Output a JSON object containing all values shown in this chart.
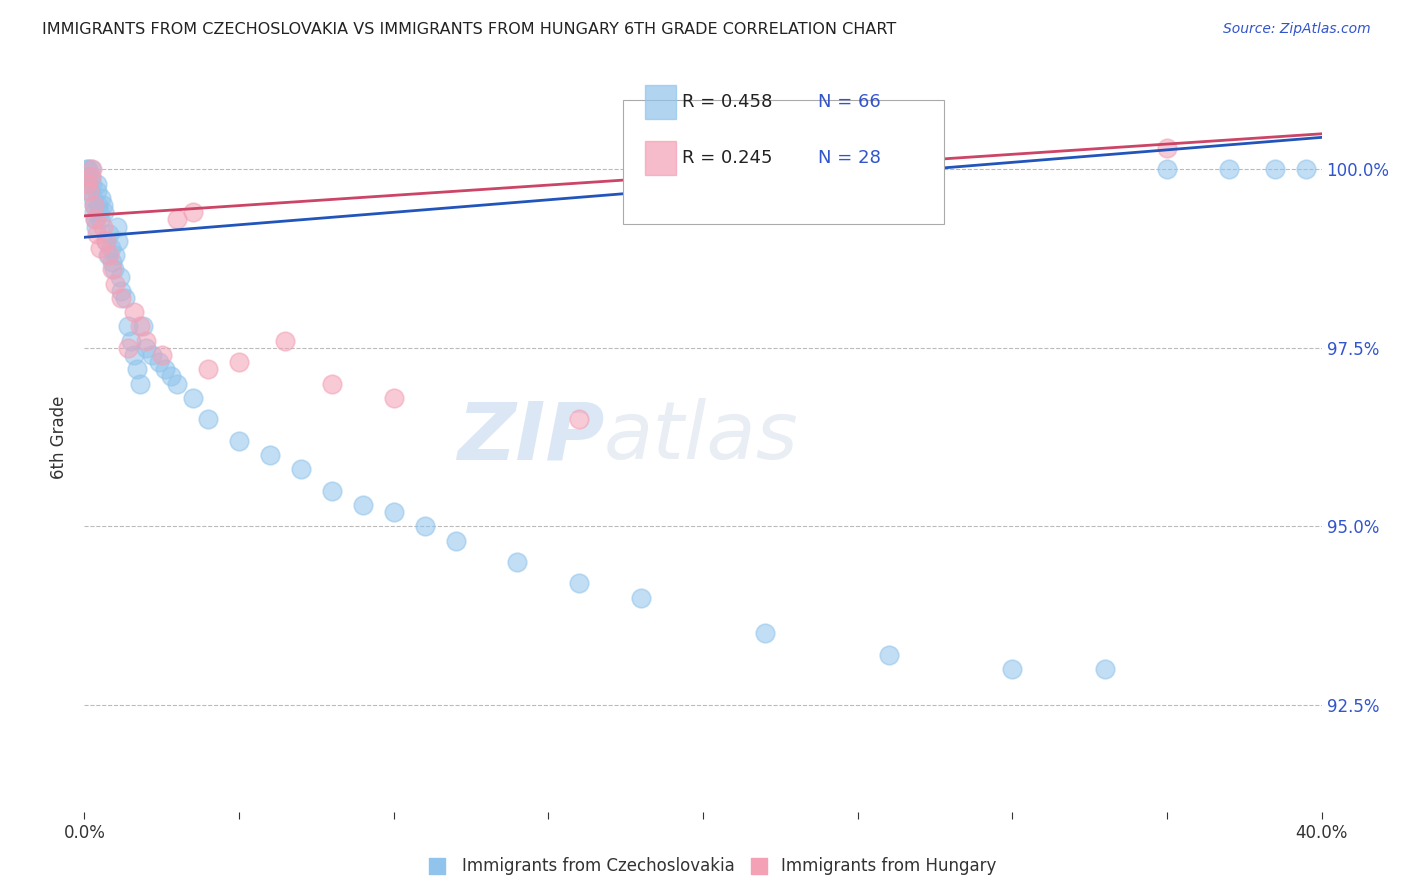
{
  "title": "IMMIGRANTS FROM CZECHOSLOVAKIA VS IMMIGRANTS FROM HUNGARY 6TH GRADE CORRELATION CHART",
  "source": "Source: ZipAtlas.com",
  "ylabel": "6th Grade",
  "xlim": [
    0.0,
    40.0
  ],
  "ylim": [
    91.0,
    101.5
  ],
  "legend_r1": "R = 0.458",
  "legend_n1": "N = 66",
  "legend_r2": "R = 0.245",
  "legend_n2": "N = 28",
  "color_blue": "#90C4EC",
  "color_pink": "#F4A0B5",
  "line_blue": "#2255BB",
  "line_pink": "#CC4466",
  "background": "#FFFFFF",
  "blue_x": [
    0.08,
    0.1,
    0.12,
    0.15,
    0.18,
    0.2,
    0.22,
    0.25,
    0.28,
    0.3,
    0.32,
    0.35,
    0.38,
    0.4,
    0.42,
    0.45,
    0.48,
    0.5,
    0.55,
    0.6,
    0.65,
    0.7,
    0.75,
    0.8,
    0.85,
    0.9,
    0.95,
    1.0,
    1.05,
    1.1,
    1.15,
    1.2,
    1.3,
    1.4,
    1.5,
    1.6,
    1.7,
    1.8,
    1.9,
    2.0,
    2.2,
    2.4,
    2.6,
    2.8,
    3.0,
    3.5,
    4.0,
    5.0,
    6.0,
    7.0,
    8.0,
    9.0,
    10.0,
    11.0,
    12.0,
    14.0,
    16.0,
    18.0,
    22.0,
    26.0,
    30.0,
    33.0,
    35.0,
    37.0,
    38.5,
    39.5
  ],
  "blue_y": [
    99.9,
    100.0,
    100.0,
    99.8,
    99.7,
    99.9,
    100.0,
    99.8,
    99.6,
    99.5,
    99.4,
    99.3,
    99.2,
    99.7,
    99.8,
    99.5,
    99.4,
    99.3,
    99.6,
    99.5,
    99.4,
    99.0,
    98.8,
    99.1,
    98.9,
    98.7,
    98.6,
    98.8,
    99.2,
    99.0,
    98.5,
    98.3,
    98.2,
    97.8,
    97.6,
    97.4,
    97.2,
    97.0,
    97.8,
    97.5,
    97.4,
    97.3,
    97.2,
    97.1,
    97.0,
    96.8,
    96.5,
    96.2,
    96.0,
    95.8,
    95.5,
    95.3,
    95.2,
    95.0,
    94.8,
    94.5,
    94.2,
    94.0,
    93.5,
    93.2,
    93.0,
    93.0,
    100.0,
    100.0,
    100.0,
    100.0
  ],
  "pink_x": [
    0.1,
    0.15,
    0.2,
    0.25,
    0.3,
    0.35,
    0.4,
    0.5,
    0.6,
    0.7,
    0.8,
    0.9,
    1.0,
    1.2,
    1.4,
    1.6,
    1.8,
    2.0,
    2.5,
    3.0,
    3.5,
    4.0,
    5.0,
    6.5,
    8.0,
    10.0,
    16.0,
    35.0
  ],
  "pink_y": [
    99.8,
    99.7,
    99.9,
    100.0,
    99.5,
    99.3,
    99.1,
    98.9,
    99.2,
    99.0,
    98.8,
    98.6,
    98.4,
    98.2,
    97.5,
    98.0,
    97.8,
    97.6,
    97.4,
    99.3,
    99.4,
    97.2,
    97.3,
    97.6,
    97.0,
    96.8,
    96.5,
    100.3
  ],
  "blue_line_x": [
    0.0,
    40.0
  ],
  "blue_line_y": [
    99.05,
    100.45
  ],
  "pink_line_x": [
    0.0,
    40.0
  ],
  "pink_line_y": [
    99.35,
    100.5
  ],
  "ytick_vals": [
    92.5,
    95.0,
    97.5,
    100.0
  ],
  "ytick_labels": [
    "92.5%",
    "95.0%",
    "97.5%",
    "100.0%"
  ],
  "xtick_vals": [
    0.0,
    5.0,
    10.0,
    15.0,
    20.0,
    25.0,
    30.0,
    35.0,
    40.0
  ],
  "xtick_labels": [
    "0.0%",
    "",
    "",
    "",
    "",
    "",
    "",
    "",
    "40.0%"
  ],
  "legend_label1": "Immigrants from Czechoslovakia",
  "legend_label2": "Immigrants from Hungary"
}
